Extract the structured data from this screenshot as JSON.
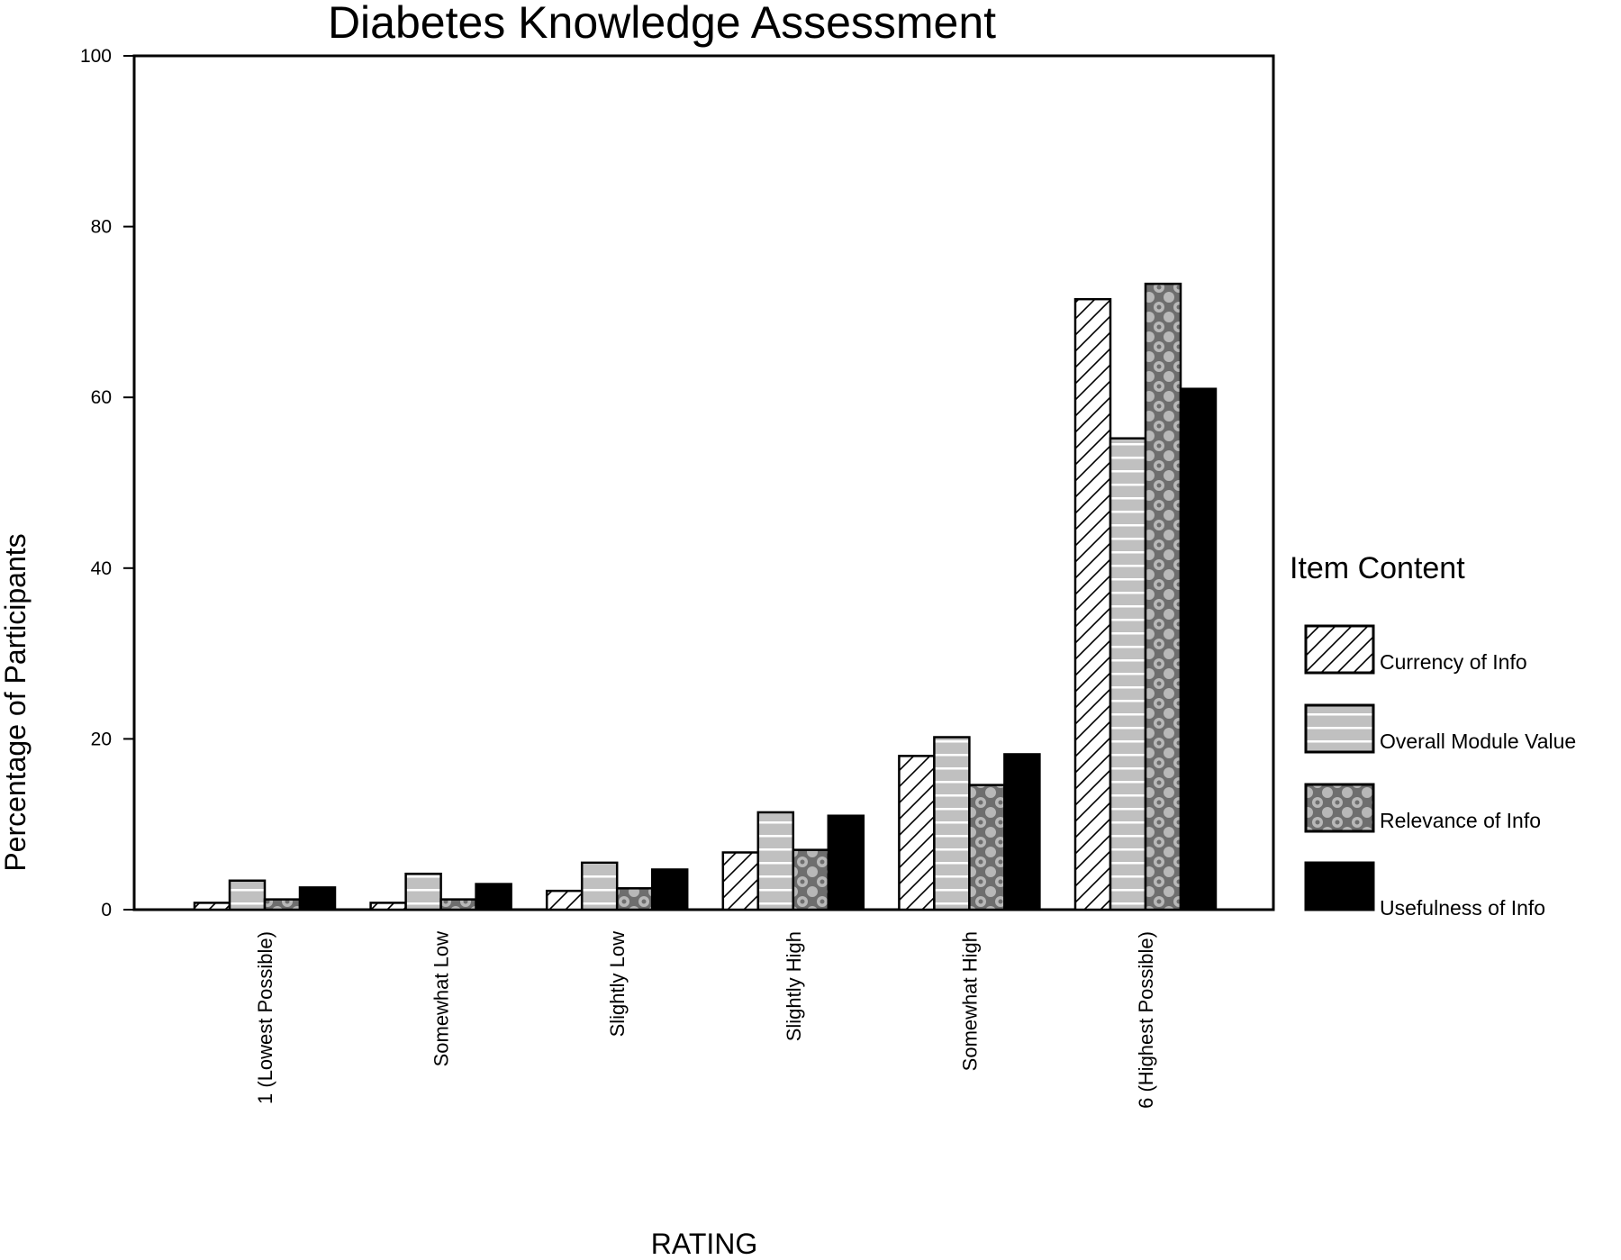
{
  "chart_data": {
    "type": "bar",
    "title": "Diabetes Knowledge Assessment",
    "xlabel": "RATING",
    "ylabel": "Percentage of Participants",
    "ylim": [
      0,
      100
    ],
    "yticks": [
      "0",
      "20",
      "40",
      "60",
      "80",
      "100"
    ],
    "categories": [
      "1 (Lowest Possible)",
      "Somewhat Low",
      "Slightly Low",
      "Slightly High",
      "Somewhat High",
      "6 (Highest Possible)"
    ],
    "legend_title": "Item Content",
    "legend_position": "right",
    "grid": false,
    "series": [
      {
        "name": "Currency of Info",
        "pattern": "diagonal-hatch",
        "values": [
          0.8,
          0.8,
          2.2,
          6.7,
          18.0,
          71.5
        ]
      },
      {
        "name": "Overall Module Value",
        "pattern": "gray-with-white-lines",
        "color": "#c0c0c0",
        "values": [
          3.4,
          4.2,
          5.5,
          11.4,
          20.2,
          55.2
        ]
      },
      {
        "name": "Relevance of Info",
        "pattern": "crosshatch",
        "color": "#808080",
        "values": [
          1.2,
          1.2,
          2.5,
          7.0,
          14.6,
          73.3
        ]
      },
      {
        "name": "Usefulness of Info",
        "pattern": "solid",
        "color": "#000000",
        "values": [
          2.6,
          3.0,
          4.7,
          11.0,
          18.2,
          61.0
        ]
      }
    ]
  }
}
